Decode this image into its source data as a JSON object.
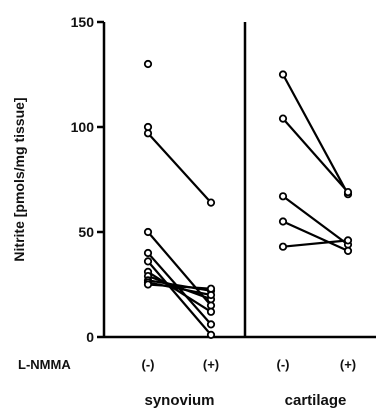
{
  "chart_data": {
    "type": "line",
    "ylabel": "Nitrite [pmols/mg tissue]",
    "ylim": [
      0,
      150
    ],
    "yticks": [
      0,
      50,
      100,
      150
    ],
    "treatment_label": "L-NMMA",
    "conditions": [
      "(-)",
      "(+)",
      "(-)",
      "(+)"
    ],
    "grid": false,
    "legend": "none",
    "panels": [
      {
        "group": "synovium",
        "unpaired_points": [
          130,
          100
        ],
        "pairs": [
          {
            "before": 97,
            "after": 64
          },
          {
            "before": 50,
            "after": 15
          },
          {
            "before": 40,
            "after": 6
          },
          {
            "before": 36,
            "after": 1
          },
          {
            "before": 31,
            "after": 12
          },
          {
            "before": 29,
            "after": 18
          },
          {
            "before": 27,
            "after": 22
          },
          {
            "before": 26,
            "after": 20
          },
          {
            "before": 25,
            "after": 23
          }
        ]
      },
      {
        "group": "cartilage",
        "unpaired_points": [],
        "pairs": [
          {
            "before": 125,
            "after": 68
          },
          {
            "before": 104,
            "after": 69
          },
          {
            "before": 67,
            "after": 44
          },
          {
            "before": 55,
            "after": 41
          },
          {
            "before": 43,
            "after": 46
          }
        ]
      }
    ]
  }
}
